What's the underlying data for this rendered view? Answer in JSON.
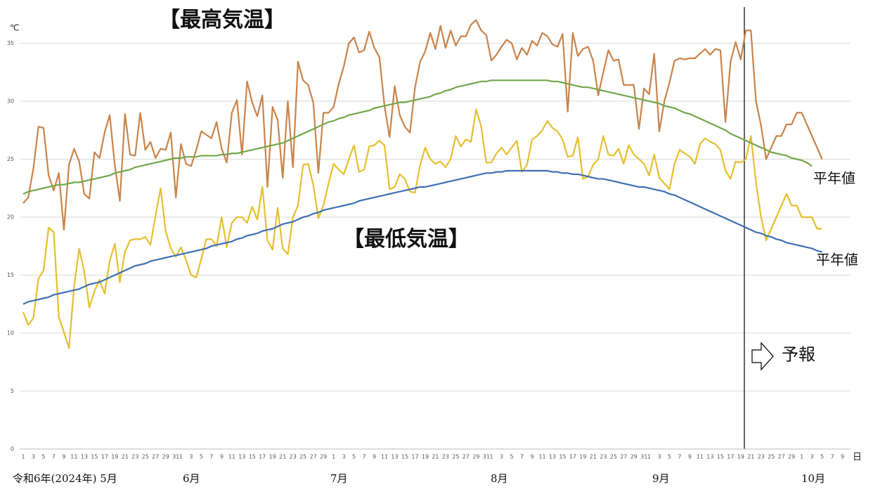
{
  "chart_data": {
    "type": "line",
    "y_label": "℃",
    "x_label": "日",
    "month_labels": [
      "令和6年(2024年) 5月",
      "6月",
      "7月",
      "8月",
      "9月",
      "10月"
    ],
    "forecast_label": "予報",
    "categories": [
      "1",
      null,
      "3",
      null,
      "5",
      null,
      "7",
      null,
      "9",
      null,
      "11",
      null,
      "13",
      null,
      "15",
      null,
      "17",
      null,
      "19",
      null,
      "21",
      null,
      "23",
      null,
      "25",
      null,
      "27",
      null,
      "29",
      null,
      "31",
      "1",
      null,
      "3",
      null,
      "5",
      null,
      "7",
      null,
      "9",
      null,
      "11",
      null,
      "13",
      null,
      "15",
      null,
      "17",
      null,
      "19",
      null,
      "21",
      null,
      "23",
      null,
      "25",
      null,
      "27",
      null,
      "29",
      null,
      "1",
      null,
      "3",
      null,
      "5",
      null,
      "7",
      null,
      "9",
      null,
      "11",
      null,
      "13",
      null,
      "15",
      null,
      "17",
      null,
      "19",
      null,
      "21",
      null,
      "23",
      null,
      "25",
      null,
      "27",
      null,
      "29",
      null,
      "31",
      "1",
      null,
      "3",
      null,
      "5",
      null,
      "7",
      null,
      "9",
      null,
      "11",
      null,
      "13",
      null,
      "15",
      null,
      "17",
      null,
      "19",
      null,
      "21",
      null,
      "23",
      null,
      "25",
      null,
      "27",
      null,
      "29",
      null,
      "31",
      "1",
      null,
      "3",
      null,
      "5",
      null,
      "7",
      null,
      "9",
      null,
      "11",
      null,
      "13",
      null,
      "15",
      null,
      "17",
      null,
      "19",
      null,
      "21",
      null,
      "23",
      null,
      "25",
      null,
      "27",
      null,
      "29",
      null,
      "1",
      null,
      "3",
      null,
      "5",
      null,
      "7",
      null,
      "9"
    ],
    "series": [
      {
        "name": "【最高気温】",
        "color": "#c9834a",
        "values": [
          21.2,
          21.7,
          24.2,
          27.8,
          27.7,
          23.6,
          22.3,
          23.8,
          18.9,
          24.5,
          25.9,
          24.8,
          22,
          21.6,
          25.6,
          25.1,
          27.3,
          28.8,
          24.5,
          21.4,
          28.9,
          25.4,
          25.3,
          29,
          25.8,
          26.5,
          25.1,
          25.9,
          25.8,
          27.3,
          21.7,
          26.3,
          24.6,
          24.4,
          25.8,
          27.4,
          27.1,
          26.8,
          28.2,
          25.9,
          24.7,
          29,
          30.1,
          25.4,
          31.7,
          29.9,
          28.7,
          30.5,
          22.6,
          29.5,
          28.4,
          23.4,
          30,
          24.3,
          33.4,
          31.8,
          31.4,
          29.9,
          23.8,
          29,
          29,
          29.5,
          31.5,
          33,
          35,
          35.5,
          34.2,
          34.4,
          36,
          34.6,
          33.8,
          29.6,
          26.9,
          31.3,
          28.8,
          27.8,
          27.3,
          31.2,
          33.4,
          34.3,
          35.9,
          34.5,
          36.5,
          34.6,
          36.1,
          34.8,
          35.6,
          35.6,
          36.6,
          37,
          36.1,
          35.7,
          33.5,
          34,
          34.7,
          35.3,
          35,
          33.6,
          34.6,
          34,
          35.2,
          34.8,
          35.9,
          35.6,
          34.9,
          34.7,
          35.8,
          29.1,
          35.9,
          33.9,
          34.5,
          34.7,
          33.5,
          30.5,
          32.5,
          34.4,
          33.5,
          33.6,
          31.4,
          31.4,
          31.4,
          27.6,
          31.1,
          30.6,
          34.1,
          27.4,
          30,
          31.6,
          33.5,
          33.7,
          33.6,
          33.7,
          33.7,
          34.1,
          34.5,
          34,
          34.5,
          34.4,
          28.2,
          33.4,
          35.1,
          33.6,
          36.1,
          36.1,
          30,
          27.9,
          25,
          26,
          27,
          27,
          28,
          28,
          29,
          29,
          28,
          27,
          26,
          25,
          null,
          null,
          null,
          null
        ]
      },
      {
        "name": "【最低気温】",
        "color": "#e6bf2e",
        "values": [
          11.8,
          10.7,
          11.3,
          14.7,
          15.4,
          19.1,
          18.7,
          11.4,
          10.1,
          8.7,
          14,
          17.3,
          15.3,
          12.2,
          13.6,
          14.6,
          13.4,
          16.2,
          17.7,
          14.4,
          17,
          18,
          18.1,
          18.1,
          18.3,
          17.6,
          20.1,
          22.5,
          18.8,
          17.3,
          16.6,
          17.4,
          16.3,
          15,
          14.8,
          16.4,
          18.1,
          18.1,
          17.5,
          20,
          17.4,
          19.5,
          20,
          20,
          19.5,
          20.9,
          19.8,
          22.6,
          18,
          17.2,
          20.8,
          17.3,
          16.8,
          20,
          21,
          24.5,
          24.6,
          22.8,
          19.9,
          21,
          22.9,
          24.6,
          24.1,
          23.7,
          25,
          26.2,
          23.9,
          24.1,
          26.1,
          26.2,
          26.6,
          26.2,
          22.4,
          22.6,
          23.7,
          23.3,
          22.2,
          22.1,
          24.5,
          26,
          25,
          24.6,
          24.8,
          24.3,
          25,
          27,
          26.1,
          26.7,
          26.5,
          29.3,
          27.8,
          24.7,
          24.7,
          25.5,
          26,
          25.4,
          26,
          26.6,
          23.9,
          24.5,
          26.7,
          27,
          27.5,
          28.3,
          27.7,
          27.4,
          26.7,
          25.2,
          25.3,
          26.9,
          23.3,
          23.5,
          24.5,
          25,
          27,
          25.4,
          25.3,
          25.9,
          24.6,
          26.2,
          25.4,
          25,
          24.6,
          23.6,
          25.4,
          23.4,
          22.9,
          22.4,
          24.6,
          25.8,
          25.5,
          25.2,
          24.6,
          26.3,
          26.8,
          26.5,
          26.3,
          25.8,
          24,
          23.3,
          24.8,
          24.7,
          25,
          27,
          23,
          20,
          18,
          19,
          20,
          21,
          22,
          21,
          21,
          20,
          20,
          20,
          19,
          19,
          null,
          null,
          null,
          null
        ]
      },
      {
        "name": "平年値",
        "color": "#70a84a",
        "values": [
          22.0,
          22.2,
          22.3,
          22.4,
          22.5,
          22.6,
          22.7,
          22.8,
          22.8,
          22.9,
          23.0,
          23.0,
          23.1,
          23.2,
          23.3,
          23.4,
          23.5,
          23.6,
          23.8,
          23.9,
          24.0,
          24.1,
          24.3,
          24.4,
          24.5,
          24.6,
          24.7,
          24.8,
          24.9,
          25.0,
          25.1,
          25.1,
          25.2,
          25.2,
          25.2,
          25.3,
          25.3,
          25.3,
          25.3,
          25.4,
          25.4,
          25.5,
          25.5,
          25.6,
          25.7,
          25.8,
          25.9,
          26.0,
          26.1,
          26.2,
          26.3,
          26.4,
          26.6,
          26.8,
          27.0,
          27.2,
          27.4,
          27.6,
          27.8,
          28.0,
          28.2,
          28.3,
          28.5,
          28.6,
          28.8,
          28.9,
          29.0,
          29.1,
          29.2,
          29.4,
          29.5,
          29.6,
          29.7,
          29.8,
          29.9,
          29.9,
          30.0,
          30.1,
          30.2,
          30.3,
          30.4,
          30.6,
          30.7,
          30.9,
          31.0,
          31.2,
          31.3,
          31.4,
          31.5,
          31.6,
          31.7,
          31.7,
          31.8,
          31.8,
          31.8,
          31.8,
          31.8,
          31.8,
          31.8,
          31.8,
          31.8,
          31.8,
          31.8,
          31.8,
          31.7,
          31.7,
          31.6,
          31.5,
          31.4,
          31.3,
          31.2,
          31.2,
          31.1,
          31.0,
          30.9,
          30.8,
          30.7,
          30.6,
          30.5,
          30.4,
          30.3,
          30.2,
          30.1,
          30.0,
          29.9,
          29.8,
          29.6,
          29.5,
          29.4,
          29.2,
          29.0,
          28.9,
          28.7,
          28.5,
          28.3,
          28.1,
          27.9,
          27.7,
          27.5,
          27.2,
          27.0,
          26.8,
          26.6,
          26.4,
          26.2,
          26.0,
          25.8,
          25.6,
          25.5,
          25.4,
          25.3,
          25.1,
          25.0,
          24.9,
          24.7,
          24.4,
          null,
          null,
          null,
          null,
          null,
          null
        ]
      },
      {
        "name": "平年値",
        "color": "#3f6fb5",
        "values": [
          12.5,
          12.7,
          12.8,
          12.9,
          13.0,
          13.1,
          13.3,
          13.4,
          13.5,
          13.6,
          13.7,
          13.8,
          14.0,
          14.2,
          14.3,
          14.4,
          14.6,
          14.8,
          15.0,
          15.2,
          15.4,
          15.6,
          15.8,
          15.9,
          16.0,
          16.2,
          16.3,
          16.4,
          16.5,
          16.6,
          16.7,
          16.8,
          16.9,
          17.0,
          17.1,
          17.2,
          17.3,
          17.5,
          17.6,
          17.7,
          17.8,
          17.9,
          18.1,
          18.2,
          18.4,
          18.5,
          18.6,
          18.8,
          18.9,
          19.0,
          19.2,
          19.4,
          19.5,
          19.6,
          19.8,
          20.0,
          20.1,
          20.3,
          20.4,
          20.6,
          20.7,
          20.8,
          20.9,
          21.0,
          21.1,
          21.2,
          21.4,
          21.5,
          21.6,
          21.7,
          21.8,
          21.9,
          22.0,
          22.1,
          22.2,
          22.3,
          22.4,
          22.5,
          22.6,
          22.6,
          22.7,
          22.8,
          22.9,
          23.0,
          23.1,
          23.2,
          23.3,
          23.4,
          23.5,
          23.6,
          23.7,
          23.8,
          23.8,
          23.9,
          23.9,
          24.0,
          24.0,
          24.0,
          24.0,
          24.0,
          24.0,
          24.0,
          24.0,
          24.0,
          23.9,
          23.9,
          23.8,
          23.8,
          23.7,
          23.7,
          23.6,
          23.5,
          23.4,
          23.3,
          23.3,
          23.2,
          23.1,
          23.0,
          22.9,
          22.8,
          22.7,
          22.6,
          22.6,
          22.5,
          22.4,
          22.3,
          22.2,
          22.0,
          21.9,
          21.7,
          21.5,
          21.3,
          21.1,
          20.9,
          20.7,
          20.5,
          20.3,
          20.1,
          19.9,
          19.7,
          19.5,
          19.3,
          19.1,
          18.9,
          18.7,
          18.6,
          18.4,
          18.3,
          18.1,
          18.0,
          17.8,
          17.7,
          17.6,
          17.5,
          17.4,
          17.3,
          17.1,
          17.0,
          null,
          null,
          null,
          null
        ]
      }
    ],
    "ylim": [
      0,
      38
    ],
    "yticks": [
      0,
      5,
      10,
      15,
      20,
      25,
      30,
      35
    ],
    "grid": true
  }
}
